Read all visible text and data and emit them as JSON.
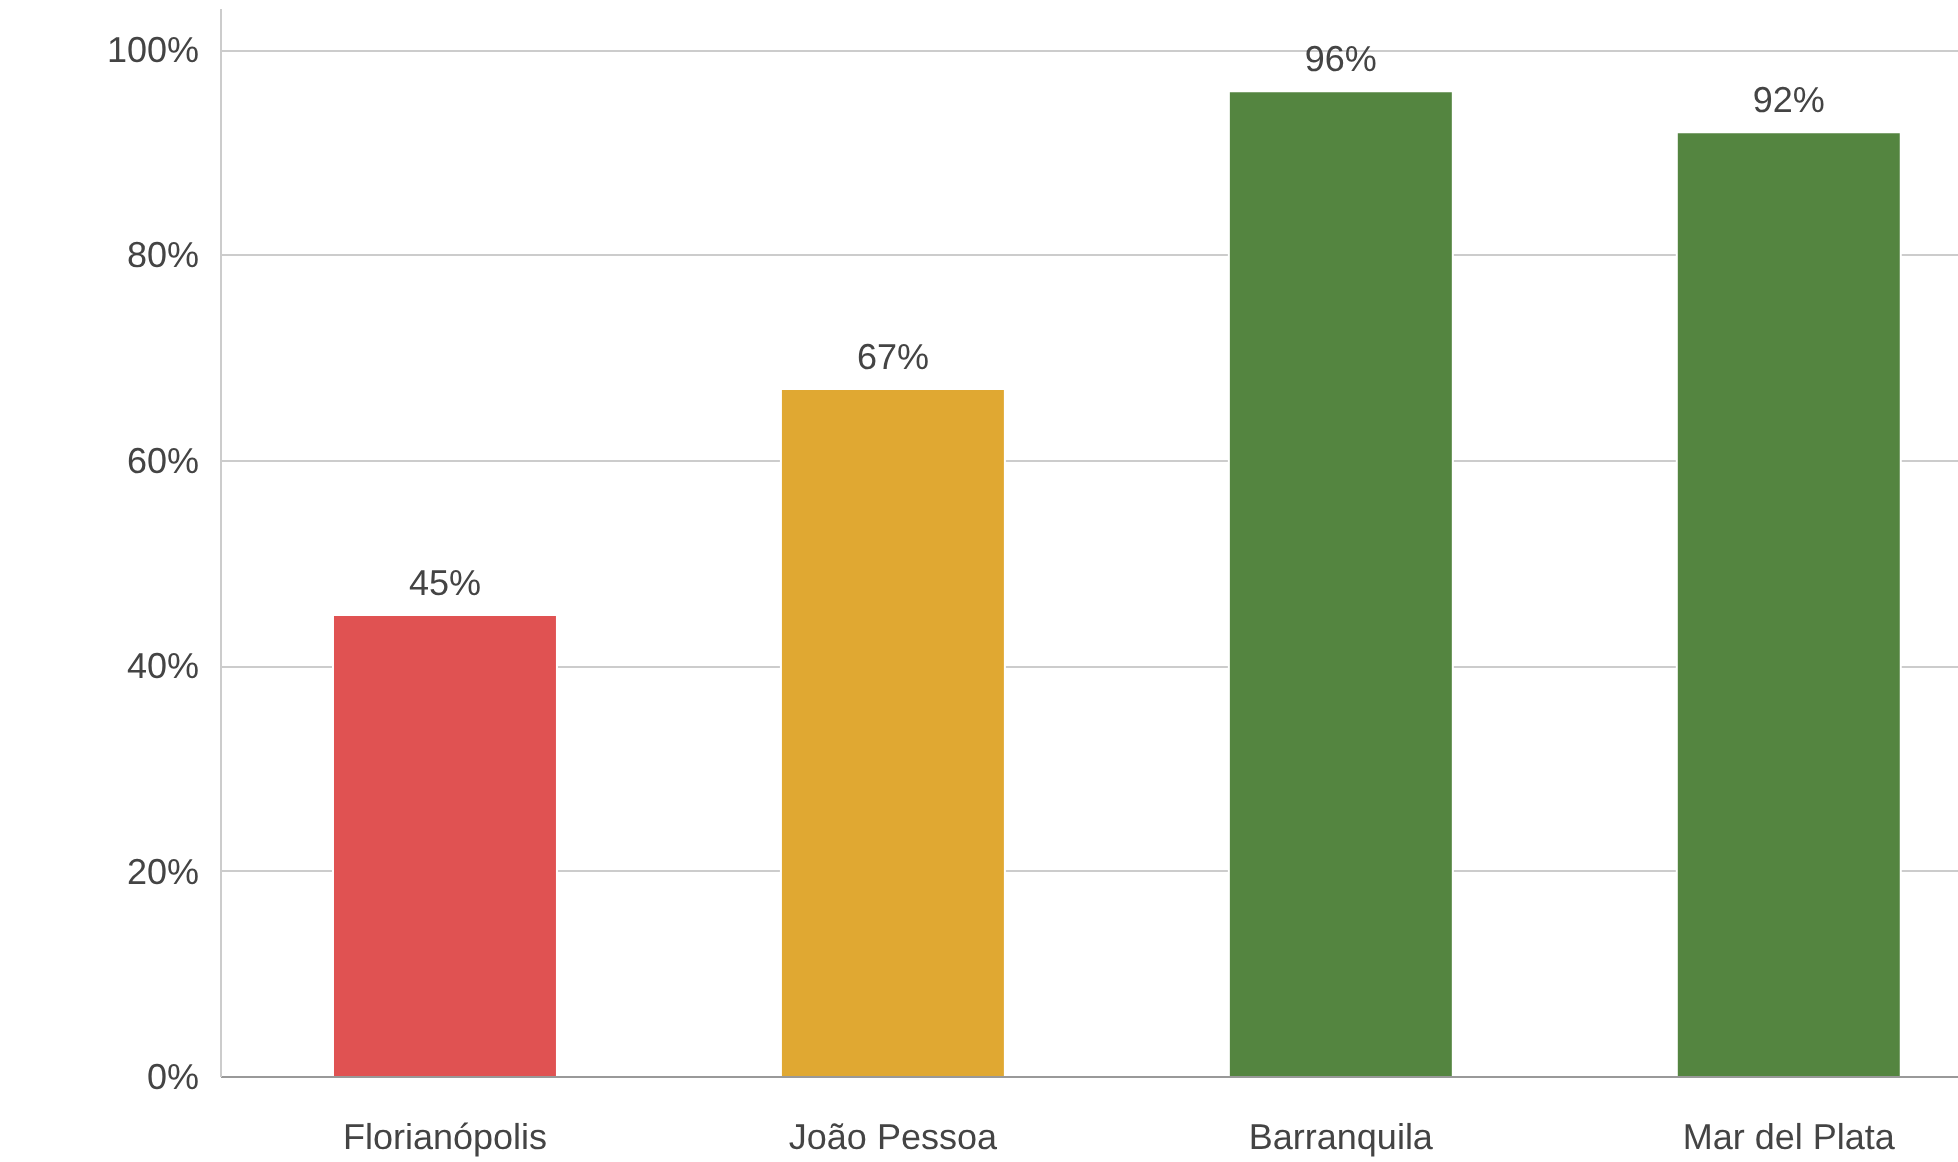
{
  "chart_data": {
    "type": "bar",
    "categories": [
      "Florianópolis",
      "João Pessoa",
      "Barranquila",
      "Mar del Plata"
    ],
    "values": [
      45,
      67,
      96,
      92
    ],
    "colors": [
      "#e05252",
      "#e0a832",
      "#548540",
      "#548540"
    ],
    "value_labels": [
      "45%",
      "67%",
      "96%",
      "92%"
    ],
    "ylim": [
      0,
      104
    ],
    "yticks": [
      {
        "value": 0,
        "label": "0%"
      },
      {
        "value": 20,
        "label": "20%"
      },
      {
        "value": 40,
        "label": "40%"
      },
      {
        "value": 60,
        "label": "60%"
      },
      {
        "value": 80,
        "label": "80%"
      },
      {
        "value": 100,
        "label": "100%"
      }
    ],
    "grid": "y"
  }
}
